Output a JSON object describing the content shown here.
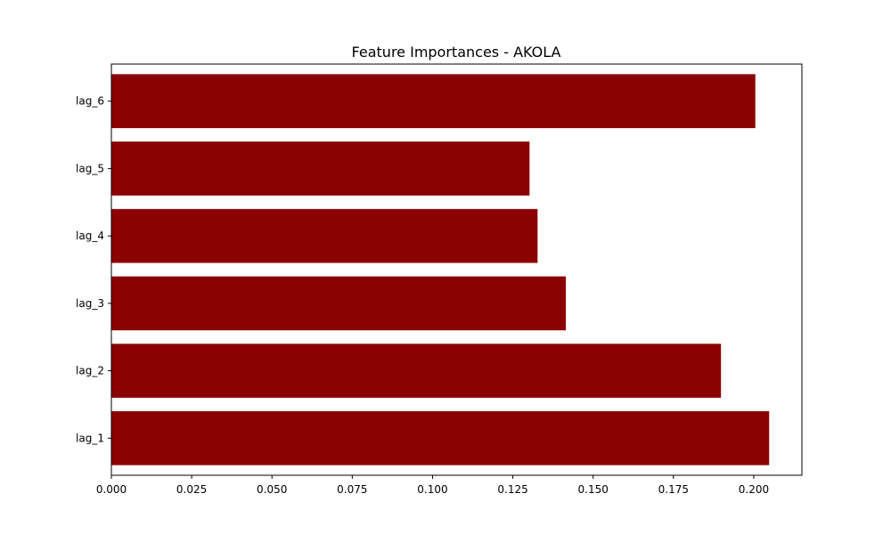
{
  "chart_data": {
    "type": "bar",
    "orientation": "horizontal",
    "title": "Feature Importances - AKOLA",
    "xlabel": "",
    "ylabel": "",
    "categories": [
      "lag_1",
      "lag_2",
      "lag_3",
      "lag_4",
      "lag_5",
      "lag_6"
    ],
    "values": [
      0.2048,
      0.1898,
      0.1415,
      0.1327,
      0.1302,
      0.2005
    ],
    "xlim": [
      0,
      0.215
    ],
    "xticks": [
      "0.000",
      "0.025",
      "0.050",
      "0.075",
      "0.100",
      "0.125",
      "0.150",
      "0.175",
      "0.200"
    ],
    "bar_color": "#8b0000",
    "grid": false,
    "legend": "none"
  }
}
